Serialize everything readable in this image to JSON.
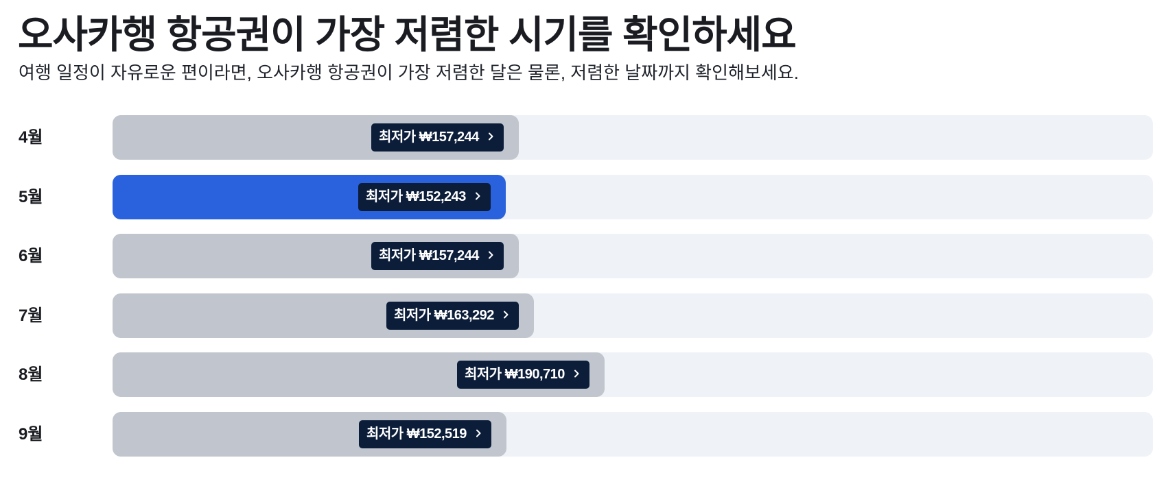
{
  "header": {
    "title": "오사카행 항공권이 가장 저렴한 시기를 확인하세요",
    "subtitle": "여행 일정이 자유로운 편이라면, 오사카행 항공권이 가장 저렴한 달은 물론, 저렴한 날짜까지 확인해보세요."
  },
  "colors": {
    "bar_default": "#c1c6ce",
    "bar_highlight": "#2a62dd",
    "track": "#eff2f7",
    "tag_bg": "#0c1d3a"
  },
  "icons": {
    "tag_arrow": "chevron-right-icon"
  },
  "chart_data": {
    "type": "bar",
    "orientation": "horizontal",
    "categories": [
      "4월",
      "5월",
      "6월",
      "7월",
      "8월",
      "9월"
    ],
    "values": [
      157244,
      152243,
      157244,
      163292,
      190710,
      152519
    ],
    "labels": [
      "최저가 ₩157,244",
      "최저가 ₩152,243",
      "최저가 ₩157,244",
      "최저가 ₩163,292",
      "최저가 ₩190,710",
      "최저가 ₩152,519"
    ],
    "highlight_index": 1,
    "xlim": [
      0,
      403000
    ],
    "grid": false,
    "legend": "none"
  }
}
